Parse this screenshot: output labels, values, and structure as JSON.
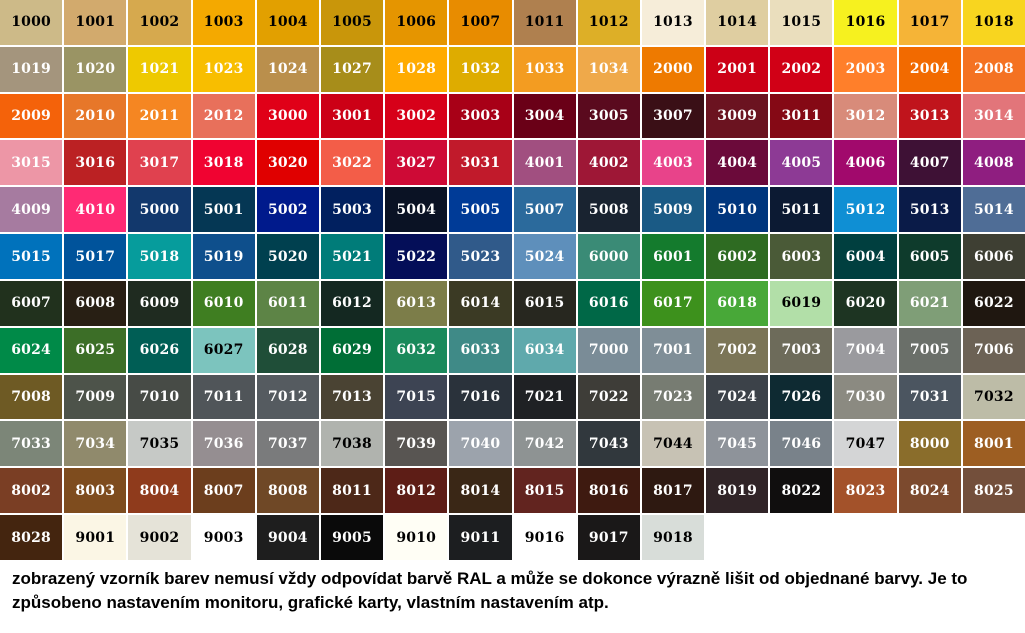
{
  "swatches": [
    {
      "code": "1000",
      "hex": "#CDBA88"
    },
    {
      "code": "1001",
      "hex": "#D2AA6D"
    },
    {
      "code": "1002",
      "hex": "#D6A94E"
    },
    {
      "code": "1003",
      "hex": "#F4A900"
    },
    {
      "code": "1004",
      "hex": "#E2A000"
    },
    {
      "code": "1005",
      "hex": "#C9960A"
    },
    {
      "code": "1006",
      "hex": "#E59500"
    },
    {
      "code": "1007",
      "hex": "#E88C00"
    },
    {
      "code": "1011",
      "hex": "#AF804F"
    },
    {
      "code": "1012",
      "hex": "#DDAF27"
    },
    {
      "code": "1013",
      "hex": "#F6EDD9"
    },
    {
      "code": "1014",
      "hex": "#DFCEA1"
    },
    {
      "code": "1015",
      "hex": "#EADEBD"
    },
    {
      "code": "1016",
      "hex": "#F6F11F"
    },
    {
      "code": "1017",
      "hex": "#F5B437"
    },
    {
      "code": "1018",
      "hex": "#F8D51F"
    },
    {
      "code": "1019",
      "hex": "#A4957D"
    },
    {
      "code": "1020",
      "hex": "#9A9464"
    },
    {
      "code": "1021",
      "hex": "#EEC900"
    },
    {
      "code": "1023",
      "hex": "#F8BE00"
    },
    {
      "code": "1024",
      "hex": "#BA8F4C"
    },
    {
      "code": "1027",
      "hex": "#A78D1A"
    },
    {
      "code": "1028",
      "hex": "#FFAB00"
    },
    {
      "code": "1032",
      "hex": "#DEAC00"
    },
    {
      "code": "1033",
      "hex": "#F39C21"
    },
    {
      "code": "1034",
      "hex": "#EFA94A"
    },
    {
      "code": "2000",
      "hex": "#EE7A00"
    },
    {
      "code": "2001",
      "hex": "#CC0016"
    },
    {
      "code": "2002",
      "hex": "#D10016"
    },
    {
      "code": "2003",
      "hex": "#FF7F2A"
    },
    {
      "code": "2004",
      "hex": "#F26A00"
    },
    {
      "code": "2008",
      "hex": "#F47222"
    },
    {
      "code": "2009",
      "hex": "#F4620A"
    },
    {
      "code": "2010",
      "hex": "#E77729"
    },
    {
      "code": "2011",
      "hex": "#F58622"
    },
    {
      "code": "2012",
      "hex": "#E8705B"
    },
    {
      "code": "3000",
      "hex": "#E00018"
    },
    {
      "code": "3001",
      "hex": "#CC0016"
    },
    {
      "code": "3002",
      "hex": "#D70019"
    },
    {
      "code": "3003",
      "hex": "#A80017"
    },
    {
      "code": "3004",
      "hex": "#6A0017"
    },
    {
      "code": "3005",
      "hex": "#5A0A1E"
    },
    {
      "code": "3007",
      "hex": "#3A0F16"
    },
    {
      "code": "3009",
      "hex": "#6B1320"
    },
    {
      "code": "3011",
      "hex": "#850915"
    },
    {
      "code": "3012",
      "hex": "#D88B7A"
    },
    {
      "code": "3013",
      "hex": "#C0141C"
    },
    {
      "code": "3014",
      "hex": "#E2757A"
    },
    {
      "code": "3015",
      "hex": "#ED96A6"
    },
    {
      "code": "3016",
      "hex": "#BB2123"
    },
    {
      "code": "3017",
      "hex": "#E0414F"
    },
    {
      "code": "3018",
      "hex": "#F00331"
    },
    {
      "code": "3020",
      "hex": "#E00000"
    },
    {
      "code": "3022",
      "hex": "#F35D48"
    },
    {
      "code": "3027",
      "hex": "#CE0A36"
    },
    {
      "code": "3031",
      "hex": "#C11A2B"
    },
    {
      "code": "4001",
      "hex": "#A14F80"
    },
    {
      "code": "4002",
      "hex": "#9E1736"
    },
    {
      "code": "4003",
      "hex": "#E8438A"
    },
    {
      "code": "4004",
      "hex": "#6B0A3A"
    },
    {
      "code": "4005",
      "hex": "#8D3A95"
    },
    {
      "code": "4006",
      "hex": "#A1096C"
    },
    {
      "code": "4007",
      "hex": "#3E1135"
    },
    {
      "code": "4008",
      "hex": "#8F1E80"
    },
    {
      "code": "4009",
      "hex": "#A67BA0"
    },
    {
      "code": "4010",
      "hex": "#FF2A74"
    },
    {
      "code": "5000",
      "hex": "#12386C"
    },
    {
      "code": "5001",
      "hex": "#053754"
    },
    {
      "code": "5002",
      "hex": "#001A8C"
    },
    {
      "code": "5003",
      "hex": "#01205F"
    },
    {
      "code": "5004",
      "hex": "#0A1224"
    },
    {
      "code": "5005",
      "hex": "#003B97"
    },
    {
      "code": "5007",
      "hex": "#2B6A9C"
    },
    {
      "code": "5008",
      "hex": "#192330"
    },
    {
      "code": "5009",
      "hex": "#1A5A85"
    },
    {
      "code": "5010",
      "hex": "#00367D"
    },
    {
      "code": "5011",
      "hex": "#0C1A33"
    },
    {
      "code": "5012",
      "hex": "#0F8FD4"
    },
    {
      "code": "5013",
      "hex": "#0A1B48"
    },
    {
      "code": "5014",
      "hex": "#4F6D96"
    },
    {
      "code": "5015",
      "hex": "#0072BC"
    },
    {
      "code": "5017",
      "hex": "#00539B"
    },
    {
      "code": "5018",
      "hex": "#069C9C"
    },
    {
      "code": "5019",
      "hex": "#0E4F8C"
    },
    {
      "code": "5020",
      "hex": "#00404F"
    },
    {
      "code": "5021",
      "hex": "#007C79"
    },
    {
      "code": "5022",
      "hex": "#040E58"
    },
    {
      "code": "5023",
      "hex": "#305A8A"
    },
    {
      "code": "5024",
      "hex": "#5E8FBB"
    },
    {
      "code": "6000",
      "hex": "#3A8B76"
    },
    {
      "code": "6001",
      "hex": "#147B2D"
    },
    {
      "code": "6002",
      "hex": "#2E6B22"
    },
    {
      "code": "6003",
      "hex": "#4A5A37"
    },
    {
      "code": "6004",
      "hex": "#003F3F"
    },
    {
      "code": "6005",
      "hex": "#0E3B2C"
    },
    {
      "code": "6006",
      "hex": "#3E3F33"
    },
    {
      "code": "6007",
      "hex": "#21311D"
    },
    {
      "code": "6008",
      "hex": "#281F14"
    },
    {
      "code": "6009",
      "hex": "#1F2B20"
    },
    {
      "code": "6010",
      "hex": "#3F7E21"
    },
    {
      "code": "6011",
      "hex": "#5D8446"
    },
    {
      "code": "6012",
      "hex": "#142821"
    },
    {
      "code": "6013",
      "hex": "#7C7D49"
    },
    {
      "code": "6014",
      "hex": "#3B3A24"
    },
    {
      "code": "6015",
      "hex": "#27271F"
    },
    {
      "code": "6016",
      "hex": "#006847"
    },
    {
      "code": "6017",
      "hex": "#3D911C"
    },
    {
      "code": "6018",
      "hex": "#48A838"
    },
    {
      "code": "6019",
      "hex": "#B2DFA8"
    },
    {
      "code": "6020",
      "hex": "#1D3422"
    },
    {
      "code": "6021",
      "hex": "#7F9E77"
    },
    {
      "code": "6022",
      "hex": "#1F1710"
    },
    {
      "code": "6024",
      "hex": "#008A48"
    },
    {
      "code": "6025",
      "hex": "#3C6E27"
    },
    {
      "code": "6026",
      "hex": "#005E55"
    },
    {
      "code": "6027",
      "hex": "#7CC4BE"
    },
    {
      "code": "6028",
      "hex": "#1F4E38"
    },
    {
      "code": "6029",
      "hex": "#006E36"
    },
    {
      "code": "6032",
      "hex": "#1A895B"
    },
    {
      "code": "6033",
      "hex": "#3F8A87"
    },
    {
      "code": "6034",
      "hex": "#5FA9AC"
    },
    {
      "code": "7000",
      "hex": "#7A8C97"
    },
    {
      "code": "7001",
      "hex": "#7F8E97"
    },
    {
      "code": "7002",
      "hex": "#7B7557"
    },
    {
      "code": "7003",
      "hex": "#6D6B5A"
    },
    {
      "code": "7004",
      "hex": "#9A9A9E"
    },
    {
      "code": "7005",
      "hex": "#6A6F69"
    },
    {
      "code": "7006",
      "hex": "#6C6255"
    },
    {
      "code": "7008",
      "hex": "#6E5A24"
    },
    {
      "code": "7009",
      "hex": "#4D534A"
    },
    {
      "code": "7010",
      "hex": "#474B46"
    },
    {
      "code": "7011",
      "hex": "#505559"
    },
    {
      "code": "7012",
      "hex": "#555B60"
    },
    {
      "code": "7013",
      "hex": "#4A4333"
    },
    {
      "code": "7015",
      "hex": "#3D4453"
    },
    {
      "code": "7016",
      "hex": "#2A323B"
    },
    {
      "code": "7021",
      "hex": "#1F2124"
    },
    {
      "code": "7022",
      "hex": "#3E3D38"
    },
    {
      "code": "7023",
      "hex": "#777C72"
    },
    {
      "code": "7024",
      "hex": "#3C4249"
    },
    {
      "code": "7026",
      "hex": "#0E2A32"
    },
    {
      "code": "7030",
      "hex": "#8B8A81"
    },
    {
      "code": "7031",
      "hex": "#4B5560"
    },
    {
      "code": "7032",
      "hex": "#BDBCA7"
    },
    {
      "code": "7033",
      "hex": "#7C8678"
    },
    {
      "code": "7034",
      "hex": "#908A6C"
    },
    {
      "code": "7035",
      "hex": "#C6C9C6"
    },
    {
      "code": "7036",
      "hex": "#958E91"
    },
    {
      "code": "7037",
      "hex": "#7A7B7C"
    },
    {
      "code": "7038",
      "hex": "#B0B3AE"
    },
    {
      "code": "7039",
      "hex": "#585552"
    },
    {
      "code": "7040",
      "hex": "#9CA3AC"
    },
    {
      "code": "7042",
      "hex": "#8E9393"
    },
    {
      "code": "7043",
      "hex": "#31383D"
    },
    {
      "code": "7044",
      "hex": "#C7C2B4"
    },
    {
      "code": "7045",
      "hex": "#8E939A"
    },
    {
      "code": "7046",
      "hex": "#79828A"
    },
    {
      "code": "7047",
      "hex": "#D4D5D6"
    },
    {
      "code": "8000",
      "hex": "#8A6D2B"
    },
    {
      "code": "8001",
      "hex": "#9D5E22"
    },
    {
      "code": "8002",
      "hex": "#7A3E24"
    },
    {
      "code": "8003",
      "hex": "#7E4C1E"
    },
    {
      "code": "8004",
      "hex": "#8F3B1C"
    },
    {
      "code": "8007",
      "hex": "#6C3E1D"
    },
    {
      "code": "8008",
      "hex": "#6F4826"
    },
    {
      "code": "8011",
      "hex": "#4D2818"
    },
    {
      "code": "8012",
      "hex": "#5D1D16"
    },
    {
      "code": "8014",
      "hex": "#3A2716"
    },
    {
      "code": "8015",
      "hex": "#62241F"
    },
    {
      "code": "8016",
      "hex": "#3E1A10"
    },
    {
      "code": "8017",
      "hex": "#2E1911"
    },
    {
      "code": "8019",
      "hex": "#302427"
    },
    {
      "code": "8022",
      "hex": "#100E0E"
    },
    {
      "code": "8023",
      "hex": "#A3522A"
    },
    {
      "code": "8024",
      "hex": "#7C4A2E"
    },
    {
      "code": "8025",
      "hex": "#734F3B"
    },
    {
      "code": "8028",
      "hex": "#44250F"
    },
    {
      "code": "9001",
      "hex": "#FBF6E5"
    },
    {
      "code": "9002",
      "hex": "#E5E3D8"
    },
    {
      "code": "9003",
      "hex": "#FFFFFF"
    },
    {
      "code": "9004",
      "hex": "#1E1E1E"
    },
    {
      "code": "9005",
      "hex": "#0A0A0A"
    },
    {
      "code": "9010",
      "hex": "#FFFEF5"
    },
    {
      "code": "9011",
      "hex": "#1C1E20"
    },
    {
      "code": "9016",
      "hex": "#FFFFFF"
    },
    {
      "code": "9017",
      "hex": "#1A1818"
    },
    {
      "code": "9018",
      "hex": "#D8DDD9"
    }
  ],
  "dark_text_codes": [
    "1000",
    "1001",
    "1002",
    "1003",
    "1004",
    "1005",
    "1006",
    "1007",
    "1011",
    "1012",
    "1013",
    "1014",
    "1015",
    "1016",
    "1017",
    "1018",
    "6019",
    "6027",
    "7032",
    "7035",
    "7038",
    "7044",
    "7047",
    "9001",
    "9002",
    "9003",
    "9010",
    "9016",
    "9018"
  ],
  "note": {
    "text": "zobrazený vzorník barev nemusí vždy odpovídat barvě RAL a může se dokonce výrazně lišit od objednané barvy. Je to způsobeno nastavením monitoru, grafické karty, vlastním nastavením atp."
  }
}
